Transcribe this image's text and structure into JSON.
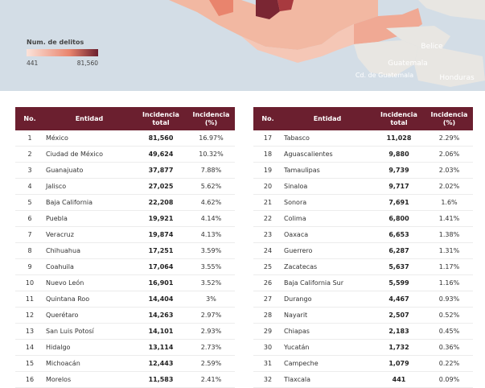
{
  "map": {
    "legend_title": "Num. de delitos",
    "legend_min": "441",
    "legend_max": "81,560",
    "labels": [
      "Belice",
      "Guatemala",
      "Cd. de Guatemala",
      "Honduras"
    ]
  },
  "tables": [
    {
      "headers": [
        "No.",
        "Entidad",
        "Incidencia total",
        "Incidencia (%)"
      ],
      "rows": [
        [
          "1",
          "México",
          "81,560",
          "16.97%"
        ],
        [
          "2",
          "Ciudad de México",
          "49,624",
          "10.32%"
        ],
        [
          "3",
          "Guanajuato",
          "37,877",
          "7.88%"
        ],
        [
          "4",
          "Jalisco",
          "27,025",
          "5.62%"
        ],
        [
          "5",
          "Baja California",
          "22,208",
          "4.62%"
        ],
        [
          "6",
          "Puebla",
          "19,921",
          "4.14%"
        ],
        [
          "7",
          "Veracruz",
          "19,874",
          "4.13%"
        ],
        [
          "8",
          "Chihuahua",
          "17,251",
          "3.59%"
        ],
        [
          "9",
          "Coahuila",
          "17,064",
          "3.55%"
        ],
        [
          "10",
          "Nuevo León",
          "16,901",
          "3.52%"
        ],
        [
          "11",
          "Quintana Roo",
          "14,404",
          "3%"
        ],
        [
          "12",
          "Querétaro",
          "14,263",
          "2.97%"
        ],
        [
          "13",
          "San Luis Potosí",
          "14,101",
          "2.93%"
        ],
        [
          "14",
          "Hidalgo",
          "13,114",
          "2.73%"
        ],
        [
          "15",
          "Michoacán",
          "12,443",
          "2.59%"
        ],
        [
          "16",
          "Morelos",
          "11,583",
          "2.41%"
        ]
      ]
    },
    {
      "headers": [
        "No.",
        "Entidad",
        "Incidencia total",
        "Incidencia (%)"
      ],
      "rows": [
        [
          "17",
          "Tabasco",
          "11,028",
          "2.29%"
        ],
        [
          "18",
          "Aguascalientes",
          "9,880",
          "2.06%"
        ],
        [
          "19",
          "Tamaulipas",
          "9,739",
          "2.03%"
        ],
        [
          "20",
          "Sinaloa",
          "9,717",
          "2.02%"
        ],
        [
          "21",
          "Sonora",
          "7,691",
          "1.6%"
        ],
        [
          "22",
          "Colima",
          "6,800",
          "1.41%"
        ],
        [
          "23",
          "Oaxaca",
          "6,653",
          "1.38%"
        ],
        [
          "24",
          "Guerrero",
          "6,287",
          "1.31%"
        ],
        [
          "25",
          "Zacatecas",
          "5,637",
          "1.17%"
        ],
        [
          "26",
          "Baja California Sur",
          "5,599",
          "1.16%"
        ],
        [
          "27",
          "Durango",
          "4,467",
          "0.93%"
        ],
        [
          "28",
          "Nayarit",
          "2,507",
          "0.52%"
        ],
        [
          "29",
          "Chiapas",
          "2,183",
          "0.45%"
        ],
        [
          "30",
          "Yucatán",
          "1,732",
          "0.36%"
        ],
        [
          "31",
          "Campeche",
          "1,079",
          "0.22%"
        ],
        [
          "32",
          "Tlaxcala",
          "441",
          "0.09%"
        ]
      ]
    }
  ]
}
